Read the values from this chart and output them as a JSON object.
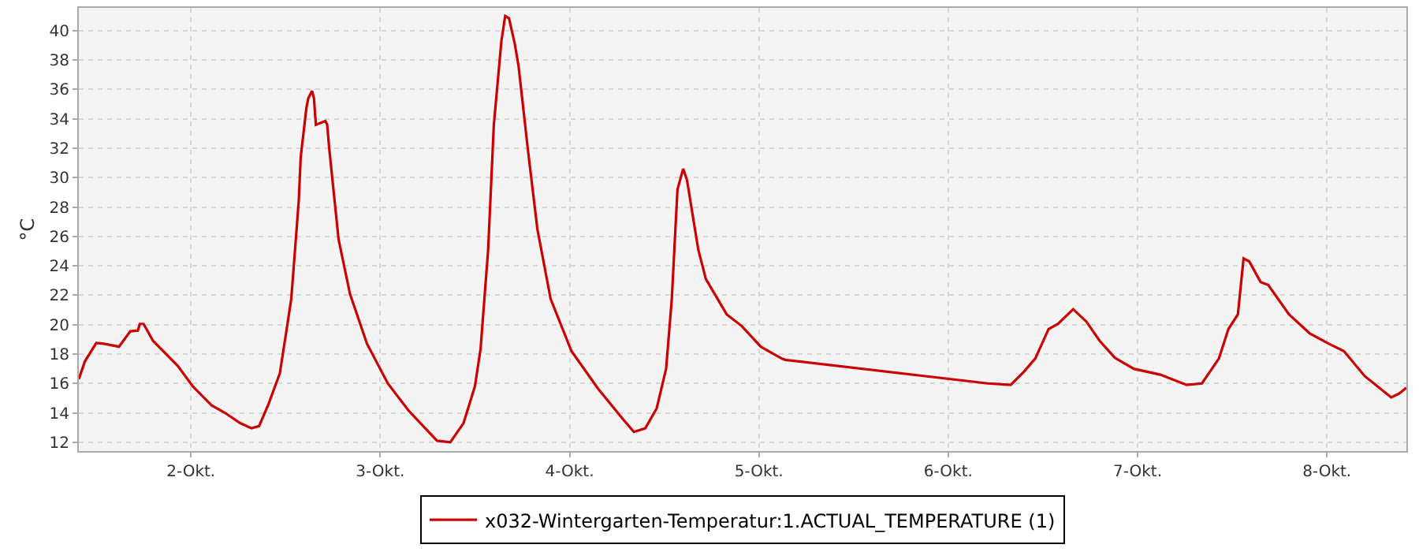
{
  "chart_data": {
    "type": "line",
    "ylabel": "°C",
    "legend": "bottom",
    "grid": true,
    "marker": "none",
    "line_style": "solid",
    "xlim": [
      1.408,
      8.42
    ],
    "ylim": [
      11.4,
      41.55
    ],
    "xticks": [
      {
        "value": 2,
        "label": "2-Okt."
      },
      {
        "value": 3,
        "label": "3-Okt."
      },
      {
        "value": 4,
        "label": "4-Okt."
      },
      {
        "value": 5,
        "label": "5-Okt."
      },
      {
        "value": 6,
        "label": "6-Okt."
      },
      {
        "value": 7,
        "label": "7-Okt."
      },
      {
        "value": 8,
        "label": "8-Okt."
      }
    ],
    "yticks": [
      12,
      14,
      16,
      18,
      20,
      22,
      24,
      26,
      28,
      30,
      32,
      34,
      36,
      38,
      40
    ],
    "series": [
      {
        "name": "x032-Wintergarten-Temperatur:1.ACTUAL_TEMPERATURE (1)",
        "color": "#cc0000",
        "x": [
          1.408,
          1.44,
          1.5,
          1.54,
          1.62,
          1.68,
          1.72,
          1.73,
          1.75,
          1.8,
          1.93,
          2.01,
          2.11,
          2.18,
          2.26,
          2.32,
          2.36,
          2.41,
          2.47,
          2.51,
          2.53,
          2.55,
          2.57,
          2.58,
          2.61,
          2.62,
          2.64,
          2.65,
          2.66,
          2.71,
          2.72,
          2.73,
          2.78,
          2.84,
          2.93,
          3.04,
          3.15,
          3.3,
          3.37,
          3.44,
          3.5,
          3.53,
          3.57,
          3.6,
          3.64,
          3.66,
          3.68,
          3.71,
          3.73,
          3.78,
          3.83,
          3.9,
          4.01,
          4.15,
          4.28,
          4.34,
          4.4,
          4.46,
          4.51,
          4.54,
          4.57,
          4.6,
          4.62,
          4.68,
          4.72,
          4.83,
          4.91,
          5.01,
          5.12,
          5.14,
          6.21,
          6.33,
          6.4,
          6.46,
          6.53,
          6.58,
          6.66,
          6.73,
          6.8,
          6.88,
          6.98,
          7.12,
          7.26,
          7.34,
          7.43,
          7.48,
          7.53,
          7.56,
          7.59,
          7.65,
          7.69,
          7.8,
          7.91,
          8.01,
          8.09,
          8.2,
          8.34,
          8.38,
          8.42
        ],
        "values": [
          16.3,
          17.5,
          18.75,
          18.7,
          18.5,
          19.55,
          19.6,
          20.05,
          20.05,
          18.9,
          17.2,
          15.8,
          14.5,
          14.0,
          13.3,
          12.95,
          13.1,
          14.6,
          16.7,
          20.05,
          21.75,
          25.1,
          28.5,
          31.4,
          34.75,
          35.4,
          35.9,
          35.4,
          33.6,
          33.85,
          33.6,
          32.05,
          25.8,
          22.1,
          18.7,
          16.0,
          14.15,
          12.1,
          12.0,
          13.3,
          15.8,
          18.35,
          25.1,
          33.6,
          39.3,
          41.0,
          40.85,
          39.15,
          37.65,
          31.9,
          26.5,
          21.75,
          18.2,
          15.65,
          13.6,
          12.7,
          12.95,
          14.3,
          17.0,
          21.75,
          29.2,
          30.6,
          29.85,
          25.1,
          23.1,
          20.7,
          19.9,
          18.5,
          17.7,
          17.6,
          16.0,
          15.9,
          16.8,
          17.7,
          19.7,
          20.05,
          21.05,
          20.2,
          18.9,
          17.75,
          17.0,
          16.6,
          15.9,
          16.0,
          17.7,
          19.7,
          20.7,
          24.5,
          24.3,
          22.9,
          22.7,
          20.7,
          19.4,
          18.7,
          18.2,
          16.5,
          15.05,
          15.3,
          15.7
        ]
      }
    ]
  }
}
